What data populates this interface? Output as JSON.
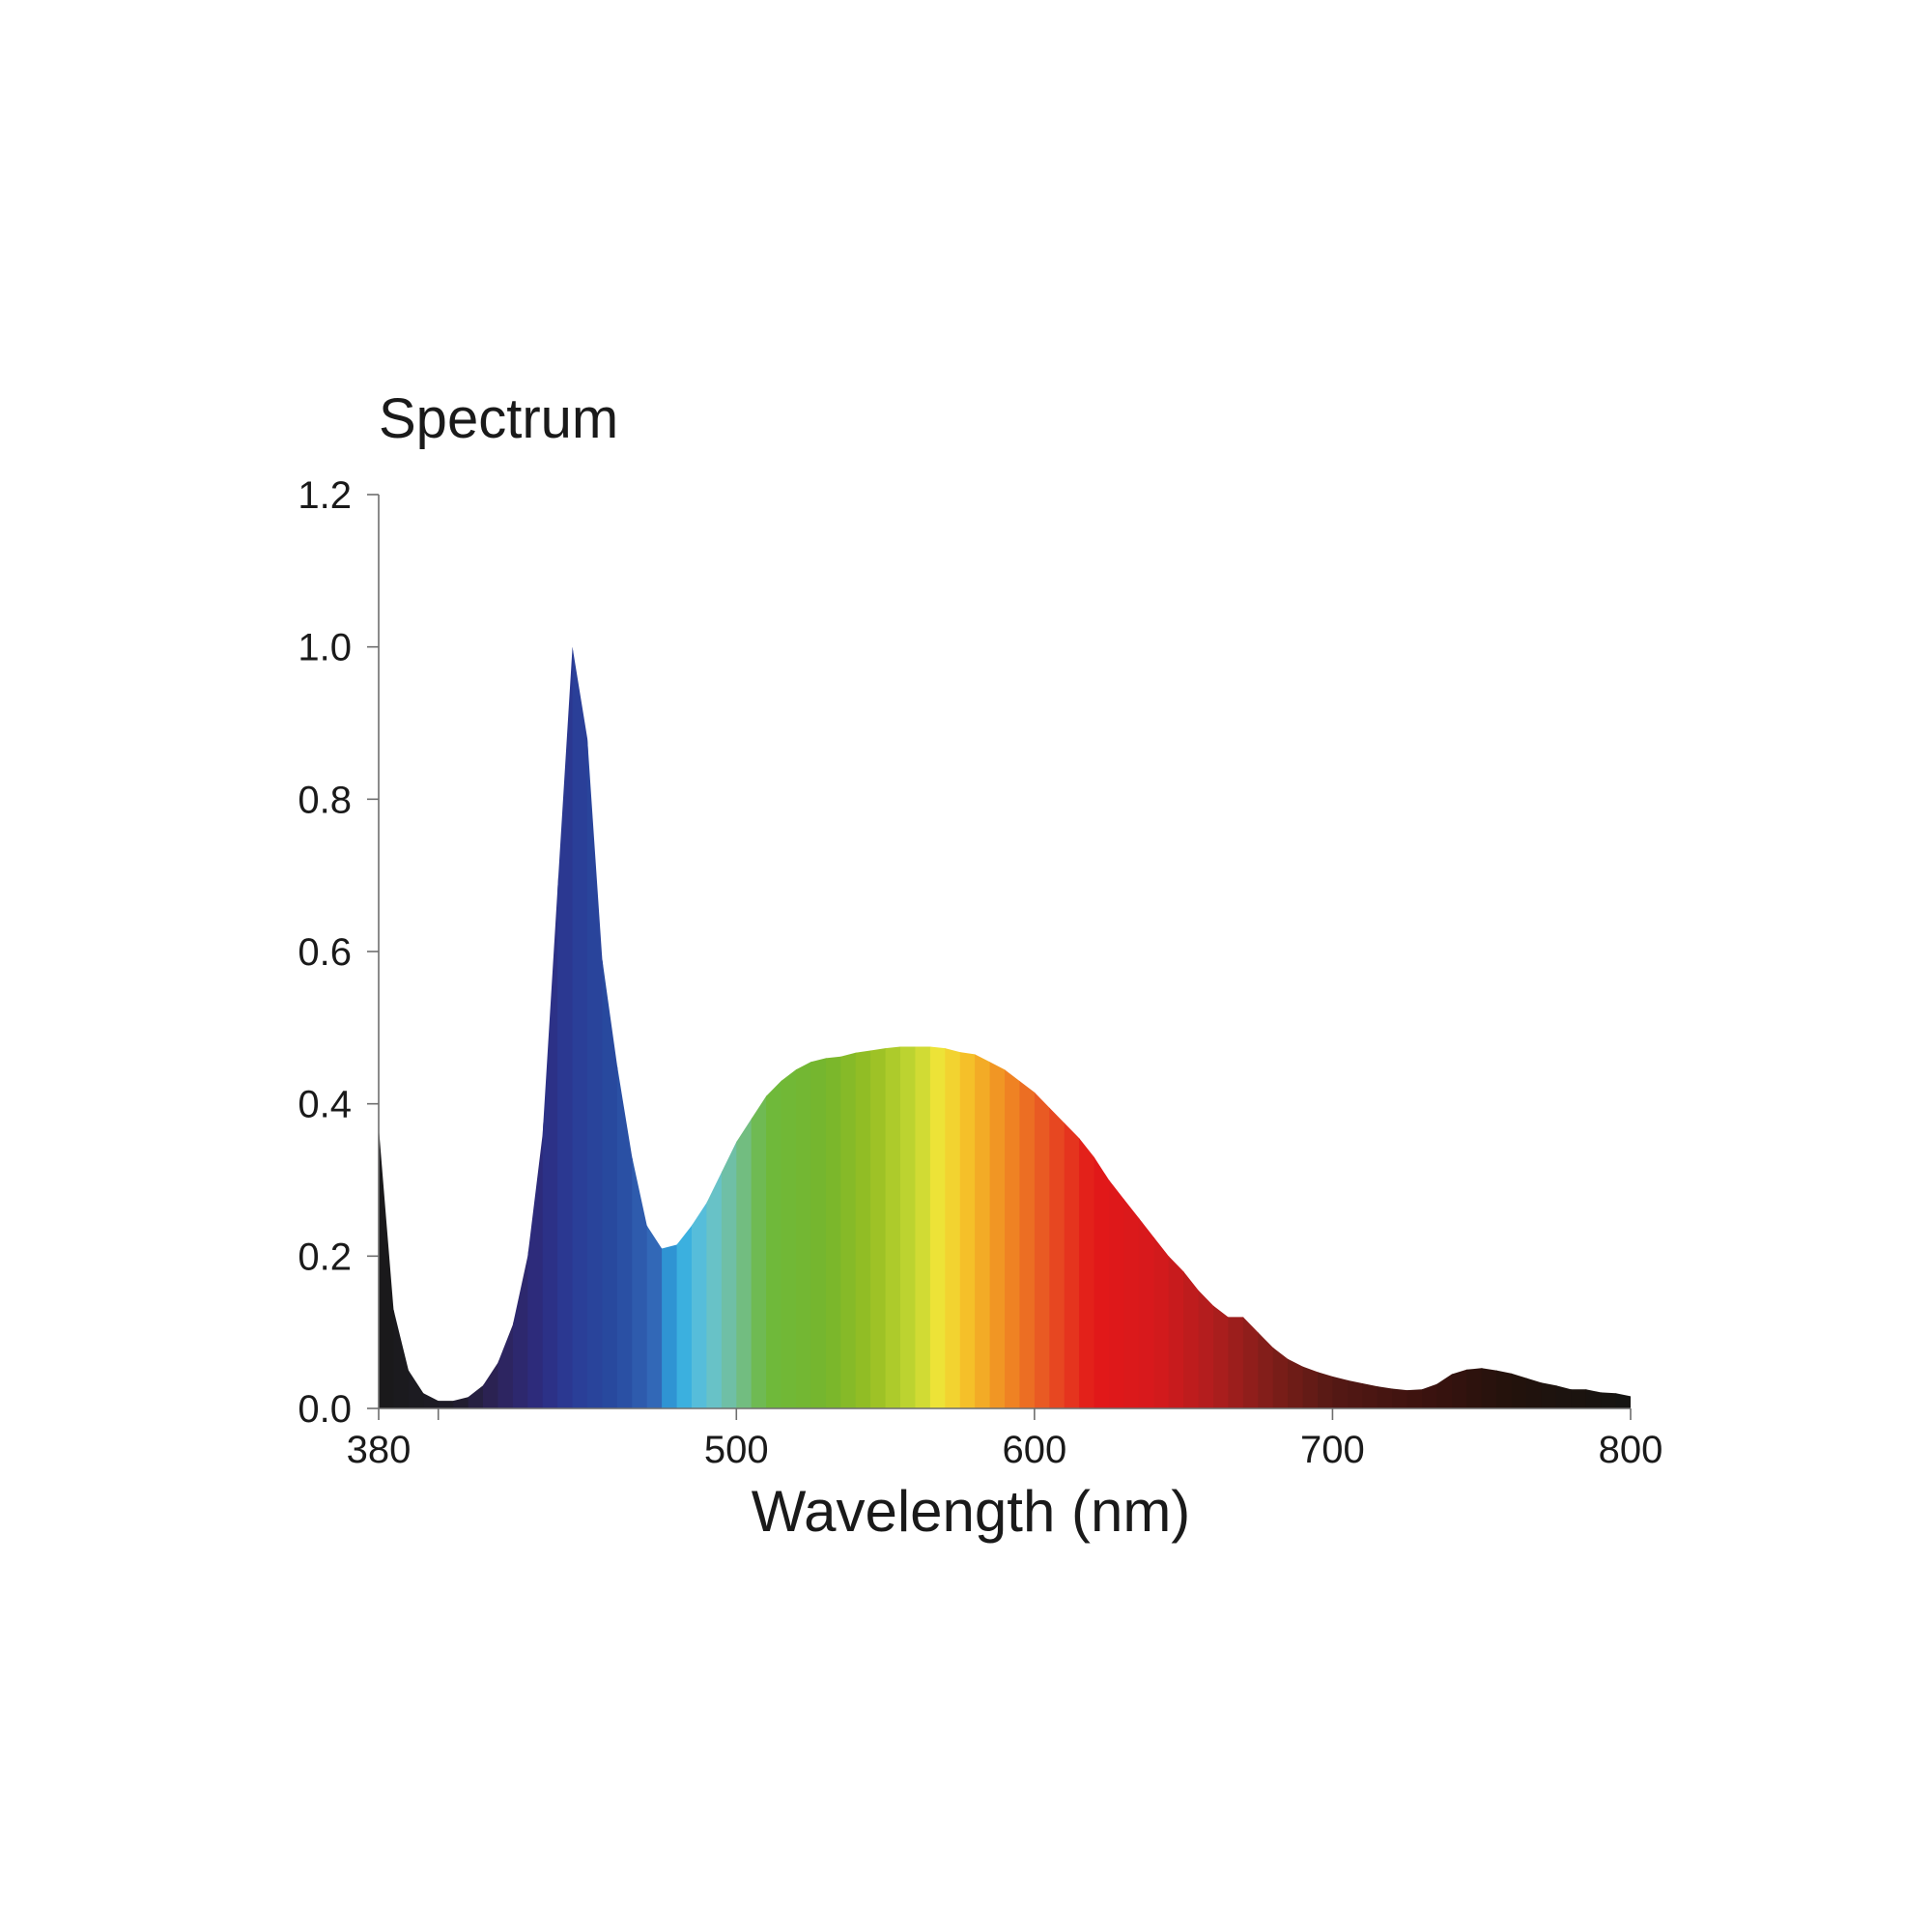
{
  "chart_data": {
    "type": "area",
    "title": "Spectrum",
    "xlabel": "Wavelength (nm)",
    "ylabel": "",
    "xlim": [
      380,
      800
    ],
    "ylim": [
      0,
      1.2
    ],
    "x_ticks": [
      380,
      500,
      600,
      700,
      800
    ],
    "x_tick_labels": [
      "380",
      "500",
      "600",
      "700",
      "800"
    ],
    "y_ticks": [
      0,
      0.2,
      0.4,
      0.6,
      0.8,
      1.0,
      1.2
    ],
    "y_tick_labels": [
      "0.0",
      "0.2",
      "0.4",
      "0.6",
      "0.8",
      "1.0",
      "1.2"
    ],
    "grid": false,
    "legend": "none",
    "fill": "spectral colour gradient",
    "series": [
      {
        "x": [
          380,
          385,
          390,
          395,
          400,
          405,
          410,
          415,
          420,
          425,
          430,
          435,
          440,
          445,
          450,
          455,
          460,
          465,
          470,
          475,
          480,
          485,
          490,
          495,
          500,
          505,
          510,
          515,
          520,
          525,
          530,
          535,
          540,
          545,
          550,
          555,
          560,
          565,
          570,
          575,
          580,
          585,
          590,
          595,
          600,
          605,
          610,
          615,
          620,
          625,
          630,
          635,
          640,
          645,
          650,
          655,
          660,
          665,
          670,
          675,
          680,
          685,
          690,
          695,
          700,
          705,
          710,
          715,
          720,
          725,
          730,
          735,
          740,
          745,
          750,
          755,
          760,
          765,
          770,
          775,
          780,
          785,
          790,
          795,
          800
        ],
        "values": [
          0.37,
          0.13,
          0.05,
          0.02,
          0.01,
          0.01,
          0.015,
          0.03,
          0.06,
          0.11,
          0.2,
          0.36,
          0.68,
          1.0,
          0.88,
          0.59,
          0.45,
          0.33,
          0.24,
          0.21,
          0.215,
          0.24,
          0.27,
          0.31,
          0.35,
          0.38,
          0.41,
          0.43,
          0.445,
          0.455,
          0.46,
          0.462,
          0.467,
          0.47,
          0.473,
          0.475,
          0.475,
          0.475,
          0.473,
          0.468,
          0.465,
          0.455,
          0.445,
          0.43,
          0.415,
          0.395,
          0.375,
          0.355,
          0.33,
          0.3,
          0.275,
          0.25,
          0.225,
          0.2,
          0.18,
          0.155,
          0.135,
          0.12,
          0.12,
          0.1,
          0.08,
          0.065,
          0.055,
          0.048,
          0.042,
          0.037,
          0.033,
          0.029,
          0.026,
          0.024,
          0.025,
          0.032,
          0.045,
          0.051,
          0.053,
          0.05,
          0.046,
          0.04,
          0.034,
          0.03,
          0.025,
          0.025,
          0.021,
          0.02,
          0.016
        ]
      }
    ]
  }
}
